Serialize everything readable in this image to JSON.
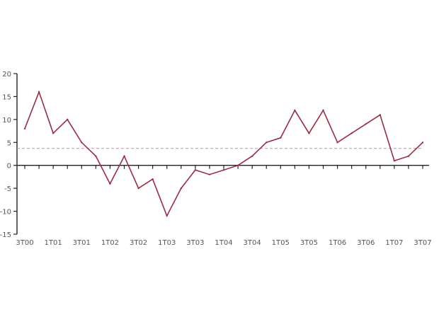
{
  "chart_data": {
    "type": "line",
    "title": "",
    "xlabel": "",
    "ylabel": "",
    "ylim": [
      -15,
      20
    ],
    "y_ticks": [
      "20",
      "15",
      "10",
      "5",
      "0",
      "-5",
      "-10",
      "-15"
    ],
    "y_tick_values": [
      20,
      15,
      10,
      5,
      0,
      -5,
      -10,
      -15
    ],
    "x_tick_labels": [
      "3T00",
      "1T01",
      "3T01",
      "1T02",
      "3T02",
      "1T03",
      "3T03",
      "1T04",
      "3T04",
      "1T05",
      "3T05",
      "1T06",
      "3T06",
      "1T07",
      "3T07"
    ],
    "reference_line": 3.7,
    "grid": false,
    "legend": "none",
    "series": [
      {
        "x": [
          0,
          0.5,
          1,
          1.5,
          2,
          2.5,
          3,
          3.5,
          4,
          4.5,
          5,
          5.5,
          6,
          6.5,
          7,
          7.5,
          8,
          8.5,
          9,
          9.5,
          10,
          10.5,
          11,
          11.5,
          12,
          12.5,
          13,
          13.5,
          14
        ],
        "values": [
          8,
          16,
          7,
          10,
          5,
          2,
          -4,
          2,
          -5,
          -3,
          -11,
          -5,
          -1,
          -2,
          -1,
          0,
          2,
          5,
          6,
          12,
          7,
          12,
          5,
          7,
          9,
          11,
          1,
          2,
          5
        ]
      }
    ],
    "colors": {
      "series": "#9b2c45",
      "reference": "#d98a98",
      "axis": "#222222"
    }
  }
}
